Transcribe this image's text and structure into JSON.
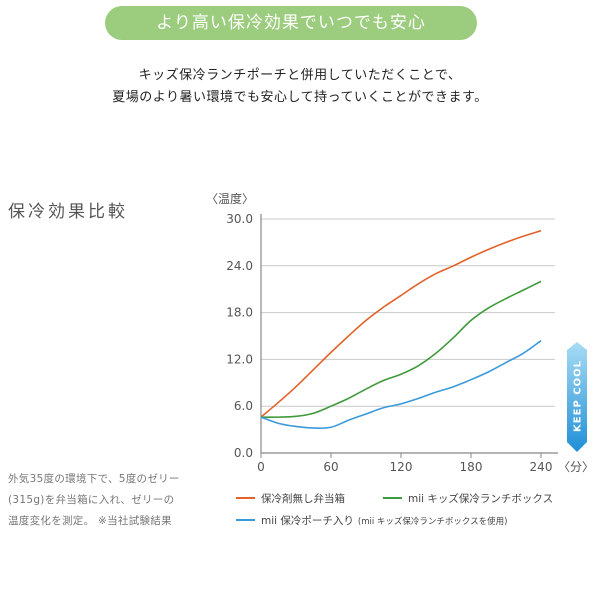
{
  "banner": "より高い保冷効果でいつでも安心",
  "intro": {
    "line1": "キッズ保冷ランチポーチと併用していただくことで、",
    "line2": "夏場のより暑い環境でも安心して持っていくことができます。"
  },
  "section_title": "保冷効果比較",
  "notes": {
    "line1": "外気35度の環境下で、5度のゼリー",
    "line2": "(315g)を弁当箱に入れ、ゼリーの",
    "line3": "温度変化を測定。 ※当社試験結果"
  },
  "keep_cool": "KEEP COOL",
  "chart_data": {
    "type": "line",
    "ylabel": "〈温度〉",
    "xlabel": "〈分〉",
    "xlim": [
      0,
      240
    ],
    "ylim": [
      0,
      30
    ],
    "xticks": [
      "0",
      "60",
      "120",
      "180",
      "240"
    ],
    "yticks": [
      "0.0",
      "6.0",
      "12.0",
      "18.0",
      "24.0",
      "30.0"
    ],
    "grid": "horizontal",
    "legend_placement": "bottom",
    "series": [
      {
        "name": "保冷剤無し弁当箱",
        "color": "#e2622a",
        "x": [
          0,
          15,
          30,
          45,
          60,
          75,
          90,
          105,
          120,
          135,
          150,
          165,
          180,
          195,
          210,
          225,
          240
        ],
        "y": [
          4.6,
          6.5,
          8.5,
          10.7,
          12.9,
          15.0,
          17.0,
          18.7,
          20.2,
          21.7,
          23.0,
          24.0,
          25.1,
          26.1,
          27.0,
          27.8,
          28.5
        ]
      },
      {
        "name": "mii キッズ保冷ランチボックス",
        "color": "#3e9a3a",
        "x": [
          0,
          15,
          30,
          45,
          60,
          75,
          90,
          105,
          120,
          135,
          150,
          165,
          180,
          195,
          210,
          225,
          240
        ],
        "y": [
          4.6,
          4.6,
          4.7,
          5.1,
          6.0,
          7.0,
          8.2,
          9.3,
          10.1,
          11.2,
          12.8,
          14.8,
          17.0,
          18.6,
          19.8,
          20.9,
          22.0
        ]
      },
      {
        "name": "mii 保冷ポーチ入り",
        "note": "(mii キッズ保冷ランチボックスを使用)",
        "color": "#3a9ad9",
        "x": [
          0,
          15,
          30,
          45,
          60,
          75,
          90,
          105,
          120,
          135,
          150,
          165,
          180,
          195,
          210,
          225,
          240
        ],
        "y": [
          4.6,
          3.8,
          3.4,
          3.2,
          3.3,
          4.2,
          5.0,
          5.8,
          6.3,
          7.0,
          7.8,
          8.5,
          9.4,
          10.4,
          11.6,
          12.8,
          14.4
        ]
      }
    ]
  }
}
